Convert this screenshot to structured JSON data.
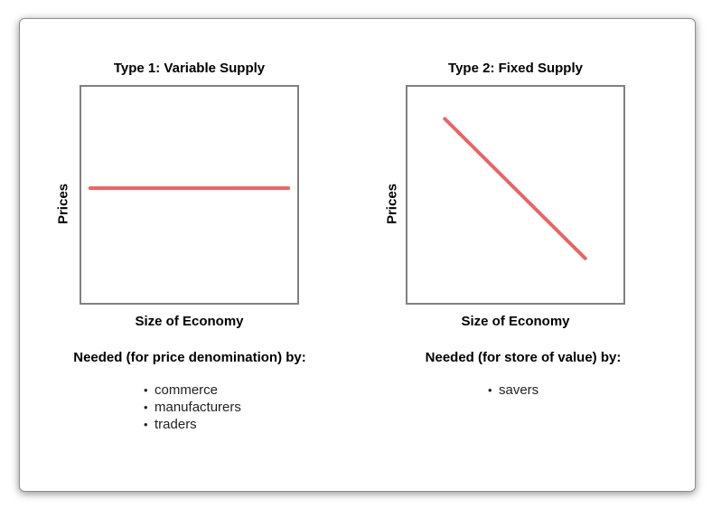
{
  "panels": [
    {
      "title": "Type 1: Variable Supply",
      "ylabel": "Prices",
      "xlabel": "Size of Economy",
      "needed": "Needed (for price denomination) by:",
      "bullets": [
        "commerce",
        "manufacturers",
        "traders"
      ],
      "line_shape": "flat"
    },
    {
      "title": "Type 2: Fixed Supply",
      "ylabel": "Prices",
      "xlabel": "Size of Economy",
      "needed": "Needed (for store of value) by:",
      "bullets": [
        "savers"
      ],
      "line_shape": "declining"
    }
  ],
  "colors": {
    "line": "#e86464",
    "frame": "#808080",
    "card_border": "#8f8f8f"
  }
}
